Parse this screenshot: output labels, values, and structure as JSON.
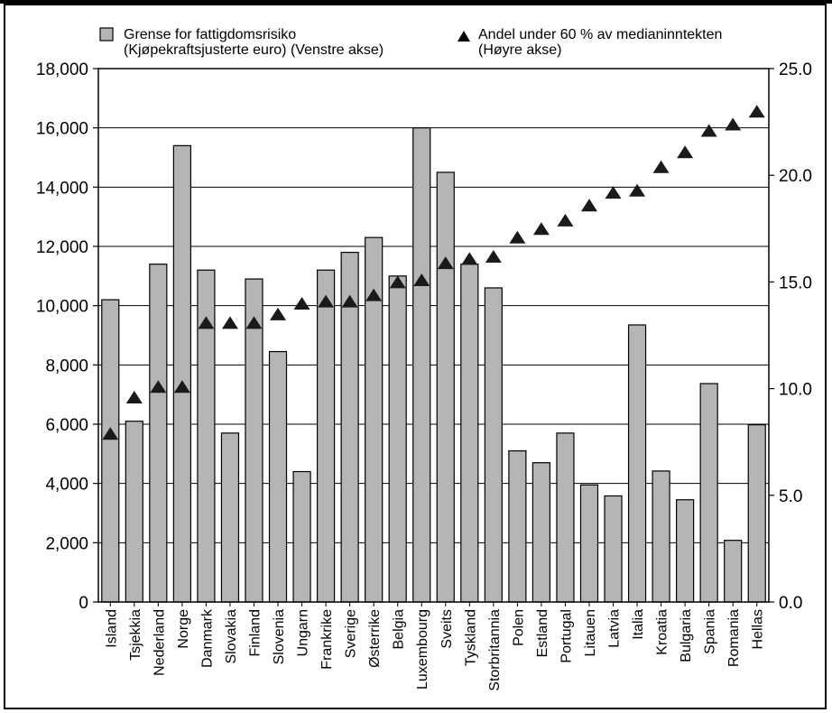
{
  "chart_data": {
    "type": "bar",
    "categories": [
      "Island",
      "Tsjekkia",
      "Nederland",
      "Norge",
      "Danmark",
      "Slovakia",
      "Finland",
      "Slovenia",
      "Ungarn",
      "Frankrike",
      "Sverige",
      "Østerrike",
      "Belgia",
      "Luxembourg",
      "Sveits",
      "Tyskland",
      "Storbritannia",
      "Polen",
      "Estland",
      "Portugal",
      "Litauen",
      "Latvia",
      "Italia",
      "Kroatia",
      "Bulgaria",
      "Spania",
      "Romania",
      "Hellas"
    ],
    "series": [
      {
        "name": "Grense for fattigdomsrisiko (Kjøpekraftsjusterte euro) (Venstre akse)",
        "kind": "bar",
        "axis": "left",
        "values": [
          10200,
          6100,
          11400,
          15400,
          11200,
          5700,
          10900,
          8450,
          4400,
          11200,
          11800,
          12300,
          11000,
          16000,
          14500,
          11400,
          10600,
          5100,
          4700,
          5700,
          3950,
          3580,
          9350,
          4420,
          3450,
          7370,
          2080,
          5980
        ]
      },
      {
        "name": "Andel under 60 % av medianinntekten (Høyre akse)",
        "kind": "marker",
        "axis": "right",
        "values": [
          7.9,
          9.6,
          10.1,
          10.1,
          13.1,
          13.1,
          13.1,
          13.5,
          14.0,
          14.1,
          14.1,
          14.4,
          15.0,
          15.1,
          15.9,
          16.1,
          16.2,
          17.1,
          17.5,
          17.9,
          18.6,
          19.2,
          19.3,
          20.4,
          21.1,
          22.1,
          22.4,
          23.0
        ]
      }
    ],
    "legend": {
      "bar_line1": "Grense for fattigdomsrisiko",
      "bar_line2": "(Kjøpekraftsjusterte euro) (Venstre akse)",
      "marker_line1": "Andel under 60 % av medianinntekten",
      "marker_line2": "(Høyre akse)"
    },
    "y_left": {
      "ylim": [
        0,
        18000
      ],
      "ticks": [
        "0",
        "2,000",
        "4,000",
        "6,000",
        "8,000",
        "10,000",
        "12,000",
        "14,000",
        "16,000",
        "18,000"
      ]
    },
    "y_right": {
      "ylim": [
        0,
        25
      ],
      "ticks": [
        "0.0",
        "5.0",
        "10.0",
        "15.0",
        "20.0",
        "25.0"
      ]
    },
    "grid": true,
    "legend_placement": "top",
    "colors": {
      "bar_fill": "#b5b5b5",
      "bar_stroke": "#000000",
      "marker": "#1a1a1a",
      "grid": "#000000"
    }
  }
}
